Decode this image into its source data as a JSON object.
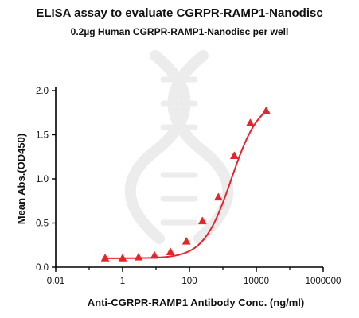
{
  "colors": {
    "series": "#e8242b",
    "axis": "#000000",
    "watermark": "#ececec"
  },
  "watermark_icon": "dna-helix-logo",
  "chart_data": {
    "type": "line",
    "title": "ELISA assay to evaluate CGRPR-RAMP1-Nanodisc",
    "subtitle": "0.2µg Human CGRPR-RAMP1-Nanodisc per well",
    "xlabel": "Anti-CGRPR-RAMP1 Antibody Conc. (ng/ml)",
    "ylabel": "Mean Abs.(OD450)",
    "xscale": "log",
    "xlim": [
      0.01,
      1000000
    ],
    "ylim": [
      0,
      2.0
    ],
    "xticks": [
      0.01,
      1,
      100,
      10000,
      1000000
    ],
    "xtick_labels": [
      "0.01",
      "1",
      "100",
      "10000",
      "1000000"
    ],
    "yticks": [
      0,
      0.5,
      1.0,
      1.5,
      2.0
    ],
    "ytick_labels": [
      "0.0",
      "0.5",
      "1.0",
      "1.5",
      "2.0"
    ],
    "grid": false,
    "marker": "triangle",
    "series": [
      {
        "x": [
          0.3,
          1,
          3,
          9,
          27,
          81,
          244,
          732,
          2196,
          6587,
          19760
        ],
        "y": [
          0.1,
          0.1,
          0.11,
          0.13,
          0.17,
          0.29,
          0.52,
          0.79,
          1.26,
          1.63,
          1.77
        ]
      }
    ],
    "fit": {
      "model": "4PL",
      "bottom": 0.1,
      "top": 1.9,
      "ec50": 1800,
      "hill": 1.05
    }
  }
}
